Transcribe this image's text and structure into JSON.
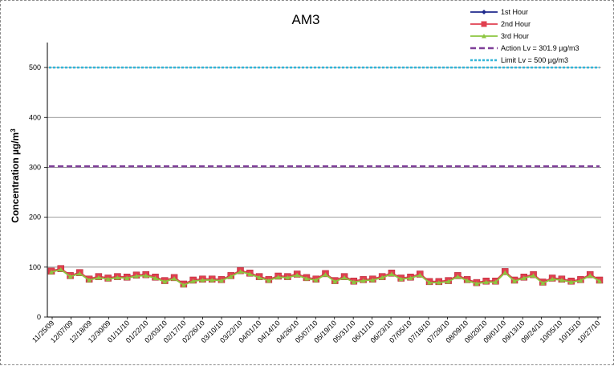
{
  "chart_data": {
    "type": "line",
    "title": "AM3",
    "ylabel": "Concentration µg/m³",
    "ylabel_main": "Concentration µg/m",
    "ylabel_sup": "3",
    "xlabel": "",
    "ylim": [
      0,
      550
    ],
    "yticks": [
      0,
      100,
      200,
      300,
      400,
      500
    ],
    "grid": "horizontal",
    "legend_position": "top-right",
    "x_tick_labels": [
      "11/25/09",
      "12/07/09",
      "12/18/09",
      "12/30/09",
      "01/11/10",
      "01/22/10",
      "02/03/10",
      "02/17/10",
      "02/26/10",
      "03/10/10",
      "03/22/10",
      "04/01/10",
      "04/14/10",
      "04/26/10",
      "05/07/10",
      "05/19/10",
      "05/31/10",
      "06/11/10",
      "06/23/10",
      "07/05/10",
      "07/16/10",
      "07/28/10",
      "08/09/10",
      "08/20/10",
      "09/01/10",
      "09/13/10",
      "09/24/10",
      "10/05/10",
      "10/15/10",
      "10/27/10"
    ],
    "series": [
      {
        "name": "1st Hour",
        "color": "#1f2a8c",
        "marker": "diamond",
        "values": [
          91,
          96,
          82,
          88,
          75,
          80,
          77,
          80,
          79,
          83,
          84,
          79,
          72,
          78,
          65,
          73,
          75,
          75,
          74,
          82,
          92,
          87,
          80,
          74,
          81,
          80,
          85,
          78,
          75,
          86,
          72,
          80,
          71,
          74,
          75,
          80,
          87,
          77,
          79,
          85,
          70,
          70,
          72,
          82,
          74,
          68,
          71,
          71,
          90,
          73,
          79,
          84,
          69,
          77,
          75,
          71,
          74,
          84,
          73
        ]
      },
      {
        "name": "2nd Hour",
        "color": "#e04050",
        "marker": "square",
        "values": [
          92,
          97,
          83,
          89,
          76,
          81,
          78,
          81,
          80,
          84,
          85,
          80,
          73,
          79,
          66,
          74,
          76,
          76,
          75,
          83,
          93,
          88,
          81,
          75,
          82,
          81,
          86,
          79,
          76,
          87,
          73,
          81,
          72,
          75,
          76,
          81,
          88,
          78,
          80,
          86,
          71,
          71,
          73,
          83,
          75,
          69,
          72,
          72,
          91,
          74,
          80,
          85,
          70,
          78,
          76,
          72,
          75,
          85,
          74
        ]
      },
      {
        "name": "3rd Hour",
        "color": "#8cc63f",
        "marker": "triangle",
        "values": [
          90,
          95,
          81,
          87,
          74,
          79,
          76,
          79,
          78,
          82,
          83,
          78,
          71,
          77,
          64,
          72,
          74,
          74,
          73,
          81,
          91,
          86,
          79,
          73,
          80,
          79,
          84,
          77,
          74,
          85,
          71,
          79,
          70,
          73,
          74,
          79,
          86,
          76,
          78,
          84,
          69,
          69,
          71,
          81,
          73,
          67,
          70,
          70,
          89,
          72,
          78,
          83,
          68,
          76,
          74,
          70,
          73,
          83,
          72
        ]
      },
      {
        "name": "Action Lv = 301.9 µg/m3",
        "color": "#7e3f98",
        "style": "dashed",
        "constant": 301.9
      },
      {
        "name": "Limit Lv = 500 µg/m3",
        "color": "#33b5d8",
        "style": "dotted",
        "constant": 500
      }
    ]
  }
}
